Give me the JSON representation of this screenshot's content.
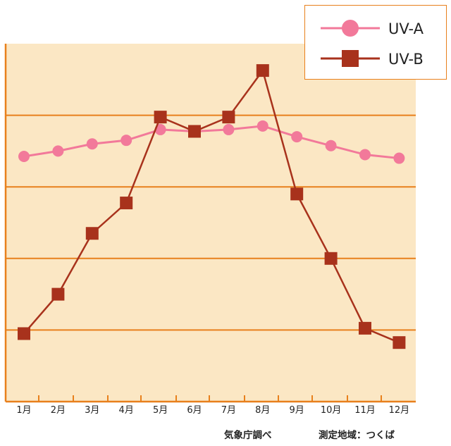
{
  "chart_data": {
    "type": "line",
    "categories": [
      "1月",
      "2月",
      "3月",
      "4月",
      "5月",
      "6月",
      "7月",
      "8月",
      "9月",
      "10月",
      "11月",
      "12月"
    ],
    "series": [
      {
        "name": "UV-A",
        "values": [
          6.85,
          7.0,
          7.2,
          7.3,
          7.6,
          7.55,
          7.6,
          7.7,
          7.4,
          7.15,
          6.9,
          6.8
        ],
        "color": "#f2799a",
        "marker": "circle"
      },
      {
        "name": "UV-B",
        "values": [
          1.9,
          3.0,
          4.7,
          5.55,
          7.95,
          7.55,
          7.95,
          9.25,
          5.8,
          4.0,
          2.05,
          1.65
        ],
        "color": "#a8321c",
        "marker": "square"
      }
    ],
    "ylim": [
      0,
      10
    ],
    "grid": true,
    "legend": "top-right",
    "colors": {
      "plot_bg": "#fbe7c4",
      "grid": "#e8801c",
      "axis": "#e8801c"
    }
  },
  "footer": {
    "source": "気象庁調べ",
    "location": "測定地域：つくば"
  }
}
